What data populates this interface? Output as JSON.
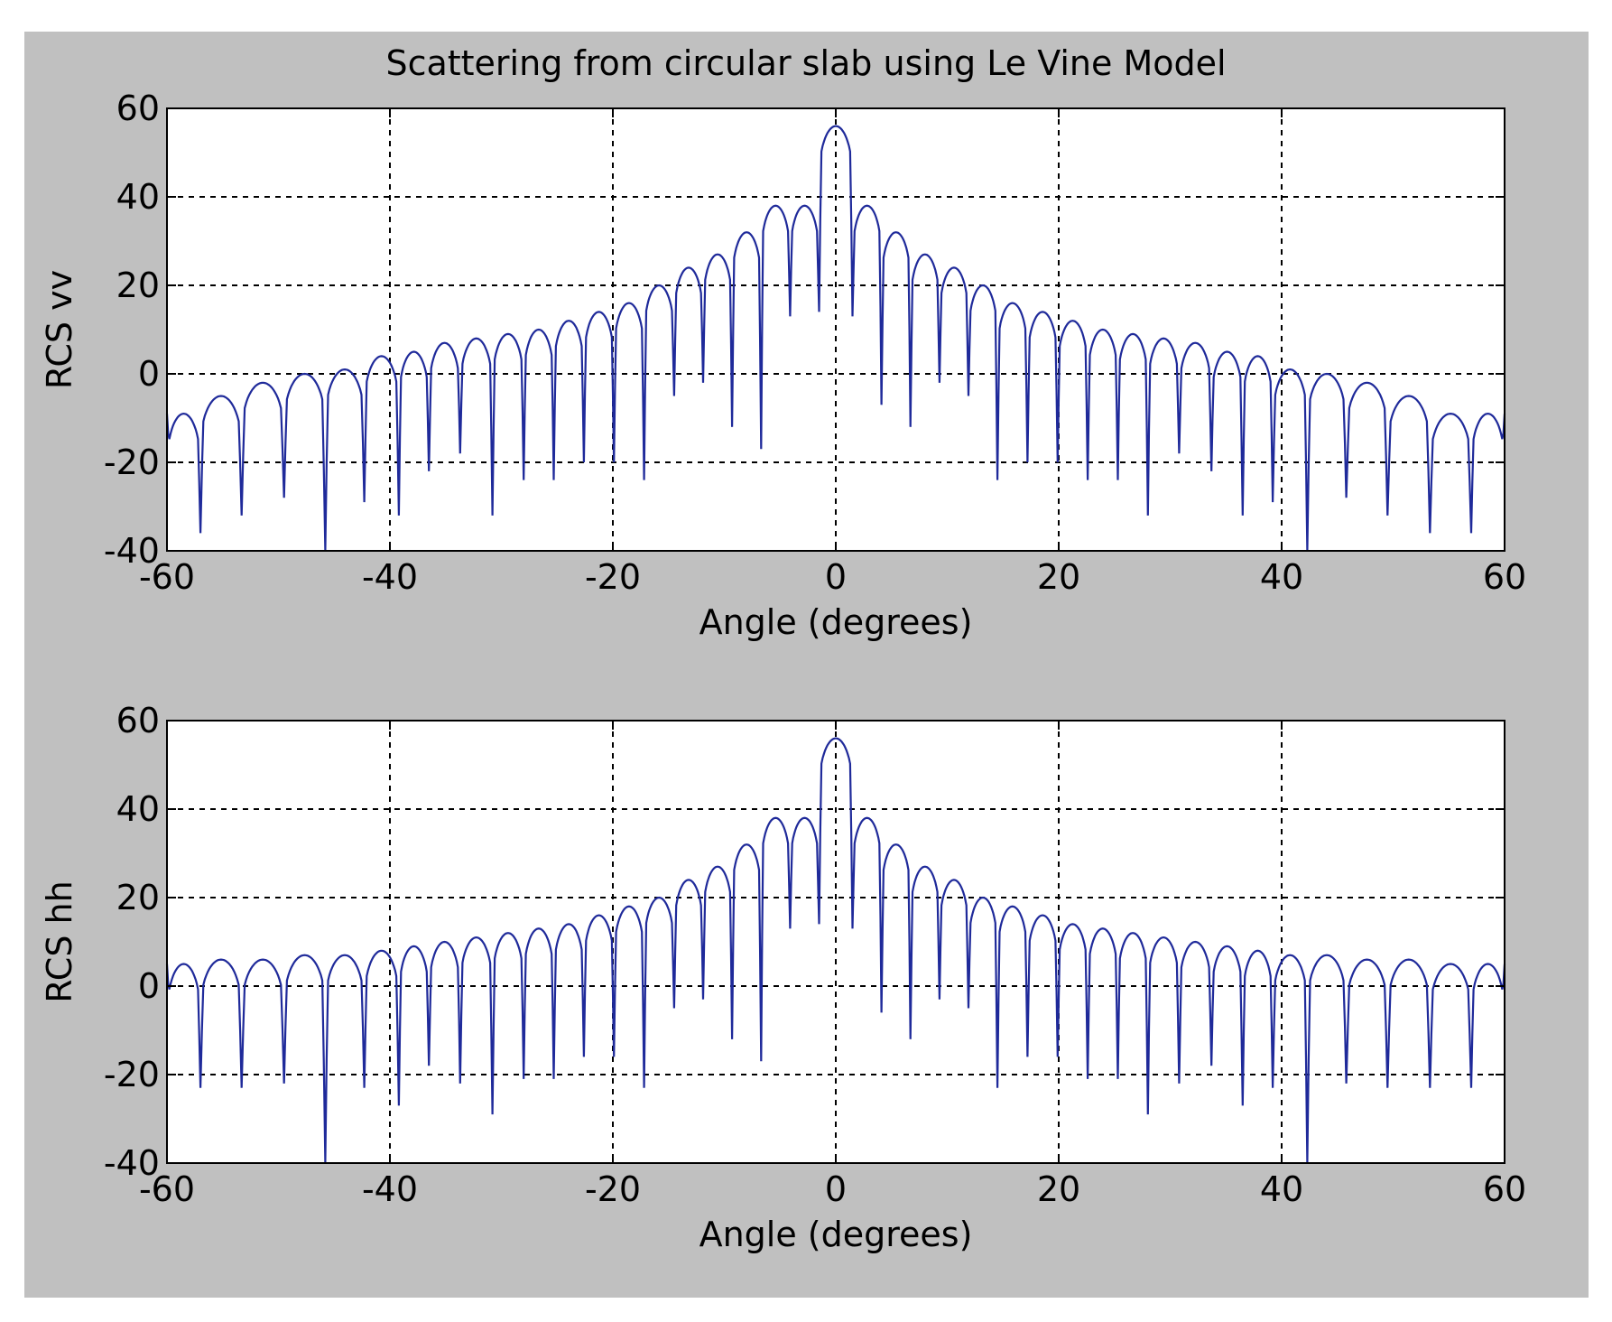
{
  "title": "Scattering from circular slab using Le Vine Model",
  "colors": {
    "figure_bg": "#c0c0c0",
    "axes_bg": "#ffffff",
    "line": "#1f2a9a",
    "grid": "#000000"
  },
  "chart_data": [
    {
      "type": "line",
      "name": "vv",
      "xlabel": "Angle (degrees)",
      "ylabel": "RCS vv",
      "xlim": [
        -60,
        60
      ],
      "ylim": [
        -40,
        60
      ],
      "xticks": [
        "-60",
        "-40",
        "-20",
        "0",
        "20",
        "40",
        "60"
      ],
      "yticks": [
        "-40",
        "-20",
        "0",
        "20",
        "40",
        "60"
      ],
      "grid": true,
      "peaks_x": [
        -58.7,
        -55.2,
        -51.4,
        -47.6,
        -44.0,
        -40.6,
        -37.8,
        -35.2,
        -32.3,
        -29.4,
        -26.7,
        -24.0,
        -21.3,
        -18.6,
        -15.9,
        -13.2,
        -10.6,
        -8.0,
        -5.4,
        -2.9,
        0.0,
        2.9,
        5.4,
        8.0,
        10.6,
        13.2,
        15.9,
        18.6,
        21.3,
        24.0,
        26.7,
        29.4,
        32.3,
        35.2,
        37.8,
        40.6,
        44.0,
        47.6,
        51.4,
        55.2,
        58.7
      ],
      "peaks_y": [
        -9,
        -5,
        -2,
        0,
        1,
        4,
        5,
        7,
        8,
        9,
        10,
        12,
        14,
        16,
        20,
        24,
        27,
        32,
        38,
        38,
        56,
        38,
        32,
        27,
        24,
        20,
        16,
        14,
        12,
        10,
        9,
        8,
        7,
        5,
        4,
        1,
        0,
        -2,
        -5,
        -9,
        -9
      ],
      "nulls_x": [
        -60.0,
        -57.0,
        -53.3,
        -49.5,
        -45.8,
        -42.3,
        -39.2,
        -36.5,
        -33.7,
        -30.8,
        -28.0,
        -25.3,
        -22.6,
        -19.9,
        -17.2,
        -14.5,
        -11.9,
        -9.3,
        -6.7,
        -4.1,
        -1.5,
        1.5,
        4.1,
        6.7,
        9.3,
        11.9,
        14.5,
        17.2,
        19.9,
        22.6,
        25.3,
        28.0,
        30.8,
        33.7,
        36.5,
        39.2,
        42.3,
        45.8,
        49.5,
        53.3,
        57.0,
        60.0
      ],
      "nulls_y": [
        -9,
        -36,
        -32,
        -28,
        -40,
        -29,
        -32,
        -22,
        -18,
        -32,
        -24,
        -24,
        -20,
        -20,
        -24,
        -5,
        -2,
        -12,
        -17,
        13,
        14,
        13,
        -7,
        -12,
        -2,
        -5,
        -24,
        -20,
        -20,
        -24,
        -24,
        -32,
        -18,
        -22,
        -32,
        -29,
        -40,
        -28,
        -32,
        -36,
        -36,
        -9
      ]
    },
    {
      "type": "line",
      "name": "hh",
      "xlabel": "Angle (degrees)",
      "ylabel": "RCS hh",
      "xlim": [
        -60,
        60
      ],
      "ylim": [
        -40,
        60
      ],
      "xticks": [
        "-60",
        "-40",
        "-20",
        "0",
        "20",
        "40",
        "60"
      ],
      "yticks": [
        "-40",
        "-20",
        "0",
        "20",
        "40",
        "60"
      ],
      "grid": true,
      "peaks_x": [
        -58.7,
        -55.2,
        -51.4,
        -47.6,
        -44.0,
        -40.6,
        -37.8,
        -35.2,
        -32.3,
        -29.4,
        -26.7,
        -24.0,
        -21.3,
        -18.6,
        -15.9,
        -13.2,
        -10.6,
        -8.0,
        -5.4,
        -2.9,
        0.0,
        2.9,
        5.4,
        8.0,
        10.6,
        13.2,
        15.9,
        18.6,
        21.3,
        24.0,
        26.7,
        29.4,
        32.3,
        35.2,
        37.8,
        40.6,
        44.0,
        47.6,
        51.4,
        55.2,
        58.7
      ],
      "peaks_y": [
        5,
        6,
        6,
        7,
        7,
        8,
        9,
        10,
        11,
        12,
        13,
        14,
        16,
        18,
        20,
        24,
        27,
        32,
        38,
        38,
        56,
        38,
        32,
        27,
        24,
        20,
        18,
        16,
        14,
        13,
        12,
        11,
        10,
        9,
        8,
        7,
        7,
        6,
        6,
        5,
        5
      ],
      "nulls_x": [
        -60.0,
        -57.0,
        -53.3,
        -49.5,
        -45.8,
        -42.3,
        -39.2,
        -36.5,
        -33.7,
        -30.8,
        -28.0,
        -25.3,
        -22.6,
        -19.9,
        -17.2,
        -14.5,
        -11.9,
        -9.3,
        -6.7,
        -4.1,
        -1.5,
        1.5,
        4.1,
        6.7,
        9.3,
        11.9,
        14.5,
        17.2,
        19.9,
        22.6,
        25.3,
        28.0,
        30.8,
        33.7,
        36.5,
        39.2,
        42.3,
        45.8,
        49.5,
        53.3,
        57.0,
        60.0
      ],
      "nulls_y": [
        5,
        -23,
        -23,
        -22,
        -40,
        -23,
        -27,
        -18,
        -22,
        -29,
        -21,
        -21,
        -16,
        -16,
        -23,
        -5,
        -3,
        -12,
        -17,
        13,
        14,
        13,
        -6,
        -12,
        -3,
        -5,
        -23,
        -16,
        -16,
        -21,
        -21,
        -29,
        -22,
        -18,
        -27,
        -23,
        -40,
        -22,
        -23,
        -23,
        -23,
        5
      ]
    }
  ]
}
